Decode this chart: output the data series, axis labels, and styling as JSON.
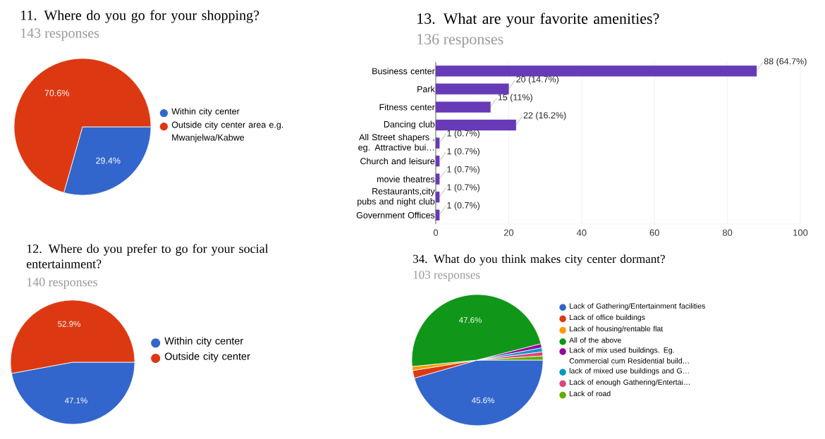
{
  "chart_data": [
    {
      "type": "pie",
      "title": "11. Where do you go for your shopping?",
      "subtitle": "143 responses",
      "categories": [
        "Within city center",
        "Outside city center area e.g. Mwanjelwa/Kabwe"
      ],
      "values": [
        29.4,
        70.6
      ],
      "colors": [
        "#3366cc",
        "#dc3912"
      ],
      "value_labels": [
        "29.4%",
        "70.6%"
      ],
      "legend": "right"
    },
    {
      "type": "bar",
      "orientation": "horizontal",
      "title": "13. What are your favorite amenities?",
      "subtitle": "136 responses",
      "categories": [
        "Business center",
        "Park",
        "Fitness center",
        "Dancing club",
        "All Street shapers , eg. Attractive bui…",
        "Church and leisure",
        "movie theatres",
        "Restaurants,city pubs and night club",
        "Government Offices"
      ],
      "values": [
        88,
        20,
        15,
        22,
        1,
        1,
        1,
        1,
        1
      ],
      "color": "#673ab7",
      "value_labels": [
        "88 (64.7%)",
        "20 (14.7%)",
        "15 (11%)",
        "22 (16.2%)",
        "1 (0.7%)",
        "1 (0.7%)",
        "1 (0.7%)",
        "1 (0.7%)",
        "1 (0.7%)"
      ],
      "xlim": [
        0,
        100
      ],
      "xticks": [
        0,
        20,
        40,
        60,
        80,
        100
      ],
      "grid": "x"
    },
    {
      "type": "pie",
      "title": "12. Where do you prefer to go for your social entertainment?",
      "subtitle": "140 responses",
      "categories": [
        "Within city center",
        "Outside city center"
      ],
      "values": [
        47.1,
        52.9
      ],
      "colors": [
        "#3366cc",
        "#dc3912"
      ],
      "value_labels": [
        "47.1%",
        "52.9%"
      ],
      "legend": "right"
    },
    {
      "type": "pie",
      "title": "34. What do you think makes city center dormant?",
      "subtitle": "103 responses",
      "categories": [
        "Lack of Gathering/Entertainment facilities",
        "Lack of office buildings",
        "Lack of housing/rentable flat",
        "All of the above",
        "Lack of mix used buildings. Eg. Commercial cum Residential build…",
        "lack of mixed use buildings and G…",
        "Lack of enough Gathering/Entertai…",
        "Lack of road"
      ],
      "values": [
        45.6,
        1.9,
        1,
        47.6,
        1,
        1,
        1,
        1
      ],
      "colors": [
        "#3366cc",
        "#dc3912",
        "#ff9900",
        "#109618",
        "#990099",
        "#0099c6",
        "#dd4477",
        "#66aa00"
      ],
      "value_labels": [
        "45.6%",
        null,
        null,
        "47.6%",
        null,
        null,
        null,
        null
      ],
      "legend": "right"
    }
  ]
}
